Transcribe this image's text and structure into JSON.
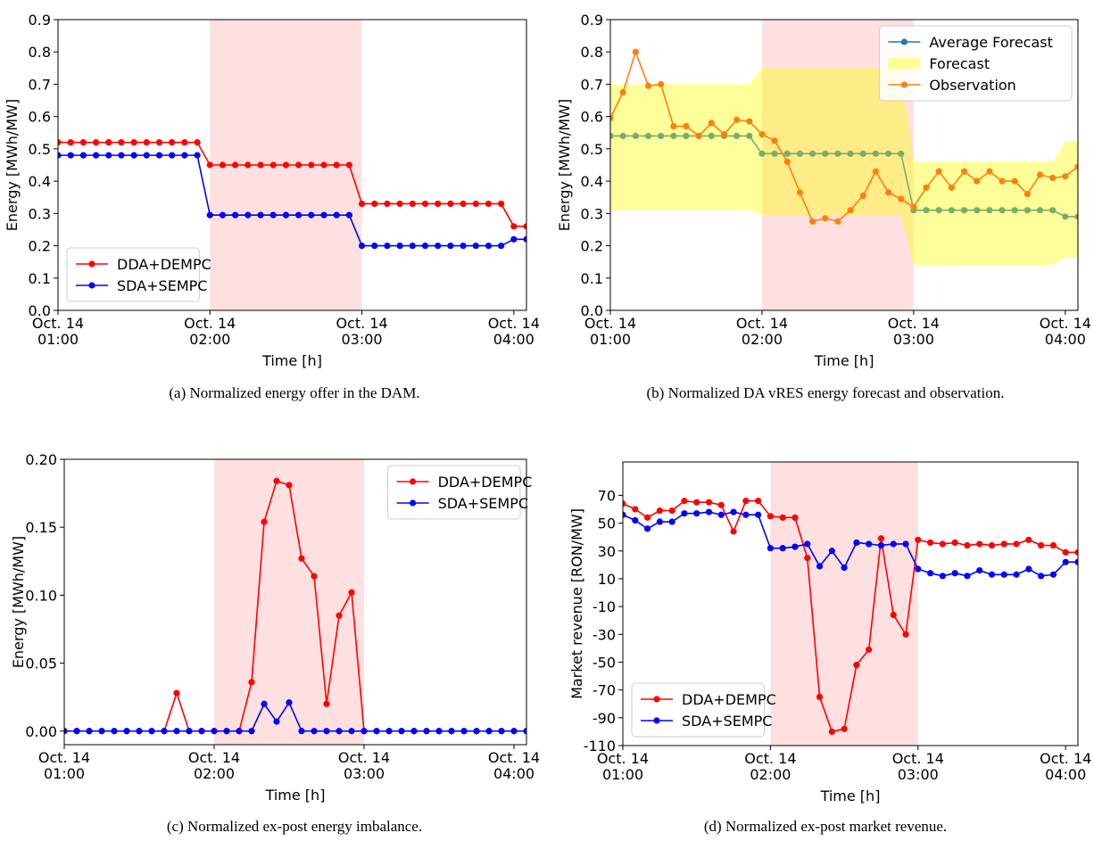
{
  "chart_data": [
    {
      "type": "line",
      "caption": "(a) Normalized energy offer in the DAM.",
      "xlabel": "Time [h]",
      "ylabel": "Energy [MWh/MW]",
      "x": [
        "01:00",
        "01:05",
        "01:10",
        "01:15",
        "01:20",
        "01:25",
        "01:30",
        "01:35",
        "01:40",
        "01:45",
        "01:50",
        "01:55",
        "02:00",
        "02:05",
        "02:10",
        "02:15",
        "02:20",
        "02:25",
        "02:30",
        "02:35",
        "02:40",
        "02:45",
        "02:50",
        "02:55",
        "03:00",
        "03:05",
        "03:10",
        "03:15",
        "03:20",
        "03:25",
        "03:30",
        "03:35",
        "03:40",
        "03:45",
        "03:50",
        "03:55",
        "04:00",
        "04:05"
      ],
      "xlim": [
        "01:00",
        "04:05"
      ],
      "xticks": [
        {
          "value": "01:00",
          "label": [
            "Oct. 14",
            "01:00"
          ]
        },
        {
          "value": "02:00",
          "label": [
            "Oct. 14",
            "02:00"
          ]
        },
        {
          "value": "03:00",
          "label": [
            "Oct. 14",
            "03:00"
          ]
        },
        {
          "value": "04:00",
          "label": [
            "Oct. 14",
            "04:00"
          ]
        }
      ],
      "ylim": [
        0,
        0.9
      ],
      "yticks": [
        {
          "value": 0,
          "label": "0.0"
        },
        0.1,
        0.2,
        0.3,
        0.4,
        0.5,
        0.6,
        0.7,
        0.8,
        0.9
      ],
      "highlight": [
        "02:00",
        "03:00"
      ],
      "highlight_color": "#ff0000",
      "legend": "lower left",
      "series": [
        {
          "name": "DDA+DEMPC",
          "color": "#ff0000",
          "values": [
            0.52,
            0.52,
            0.52,
            0.52,
            0.52,
            0.52,
            0.52,
            0.52,
            0.52,
            0.52,
            0.52,
            0.52,
            0.45,
            0.45,
            0.45,
            0.45,
            0.45,
            0.45,
            0.45,
            0.45,
            0.45,
            0.45,
            0.45,
            0.45,
            0.33,
            0.33,
            0.33,
            0.33,
            0.33,
            0.33,
            0.33,
            0.33,
            0.33,
            0.33,
            0.33,
            0.33,
            0.26,
            0.26
          ]
        },
        {
          "name": "SDA+SEMPC",
          "color": "#0000ff",
          "values": [
            0.48,
            0.48,
            0.48,
            0.48,
            0.48,
            0.48,
            0.48,
            0.48,
            0.48,
            0.48,
            0.48,
            0.48,
            0.295,
            0.295,
            0.295,
            0.295,
            0.295,
            0.295,
            0.295,
            0.295,
            0.295,
            0.295,
            0.295,
            0.295,
            0.2,
            0.2,
            0.2,
            0.2,
            0.2,
            0.2,
            0.2,
            0.2,
            0.2,
            0.2,
            0.2,
            0.2,
            0.22,
            0.22
          ]
        }
      ]
    },
    {
      "type": "line",
      "caption": "(b) Normalized DA vRES energy forecast and observation.",
      "xlabel": "Time [h]",
      "ylabel": "Energy [MWh/MW]",
      "x": [
        "01:00",
        "01:05",
        "01:10",
        "01:15",
        "01:20",
        "01:25",
        "01:30",
        "01:35",
        "01:40",
        "01:45",
        "01:50",
        "01:55",
        "02:00",
        "02:05",
        "02:10",
        "02:15",
        "02:20",
        "02:25",
        "02:30",
        "02:35",
        "02:40",
        "02:45",
        "02:50",
        "02:55",
        "03:00",
        "03:05",
        "03:10",
        "03:15",
        "03:20",
        "03:25",
        "03:30",
        "03:35",
        "03:40",
        "03:45",
        "03:50",
        "03:55",
        "04:00",
        "04:05"
      ],
      "xlim": [
        "01:00",
        "04:05"
      ],
      "xticks": [
        {
          "value": "01:00",
          "label": [
            "Oct. 14",
            "01:00"
          ]
        },
        {
          "value": "02:00",
          "label": [
            "Oct. 14",
            "02:00"
          ]
        },
        {
          "value": "03:00",
          "label": [
            "Oct. 14",
            "03:00"
          ]
        },
        {
          "value": "04:00",
          "label": [
            "Oct. 14",
            "04:00"
          ]
        }
      ],
      "ylim": [
        0,
        0.9
      ],
      "yticks": [
        {
          "value": 0,
          "label": "0.0"
        },
        0.1,
        0.2,
        0.3,
        0.4,
        0.5,
        0.6,
        0.7,
        0.8,
        0.9
      ],
      "highlight": [
        "02:00",
        "03:00"
      ],
      "highlight_color": "#ff0000",
      "legend": "upper right",
      "series": [
        {
          "name": "Average Forecast",
          "color": "#1f77b4",
          "values": [
            0.54,
            0.54,
            0.54,
            0.54,
            0.54,
            0.54,
            0.54,
            0.54,
            0.54,
            0.54,
            0.54,
            0.54,
            0.485,
            0.485,
            0.485,
            0.485,
            0.485,
            0.485,
            0.485,
            0.485,
            0.485,
            0.485,
            0.485,
            0.485,
            0.31,
            0.31,
            0.31,
            0.31,
            0.31,
            0.31,
            0.31,
            0.31,
            0.31,
            0.31,
            0.31,
            0.31,
            0.29,
            0.29
          ]
        },
        {
          "name": "Forecast",
          "type": "band",
          "color": "#ffff00",
          "lower": [
            0.31,
            0.31,
            0.31,
            0.31,
            0.31,
            0.31,
            0.31,
            0.31,
            0.31,
            0.31,
            0.31,
            0.31,
            0.295,
            0.295,
            0.295,
            0.295,
            0.295,
            0.295,
            0.295,
            0.295,
            0.295,
            0.295,
            0.295,
            0.295,
            0.14,
            0.14,
            0.14,
            0.14,
            0.14,
            0.14,
            0.14,
            0.14,
            0.14,
            0.14,
            0.14,
            0.14,
            0.165,
            0.165
          ],
          "upper": [
            0.7,
            0.7,
            0.7,
            0.7,
            0.7,
            0.7,
            0.7,
            0.7,
            0.7,
            0.7,
            0.7,
            0.7,
            0.75,
            0.75,
            0.75,
            0.75,
            0.75,
            0.75,
            0.75,
            0.75,
            0.75,
            0.75,
            0.75,
            0.75,
            0.46,
            0.46,
            0.46,
            0.46,
            0.46,
            0.46,
            0.46,
            0.46,
            0.46,
            0.46,
            0.46,
            0.46,
            0.525,
            0.525
          ]
        },
        {
          "name": "Observation",
          "color": "#ff7f0e",
          "values": [
            0.595,
            0.675,
            0.8,
            0.695,
            0.7,
            0.57,
            0.57,
            0.54,
            0.58,
            0.545,
            0.59,
            0.585,
            0.545,
            0.525,
            0.46,
            0.365,
            0.275,
            0.285,
            0.275,
            0.31,
            0.355,
            0.43,
            0.365,
            0.345,
            0.32,
            0.38,
            0.43,
            0.38,
            0.43,
            0.4,
            0.43,
            0.4,
            0.4,
            0.36,
            0.42,
            0.41,
            0.415,
            0.445
          ]
        }
      ]
    },
    {
      "type": "line",
      "caption": "(c) Normalized ex-post energy imbalance.",
      "xlabel": "Time [h]",
      "ylabel": "Energy [MWh/MW]",
      "x": [
        "01:00",
        "01:05",
        "01:10",
        "01:15",
        "01:20",
        "01:25",
        "01:30",
        "01:35",
        "01:40",
        "01:45",
        "01:50",
        "01:55",
        "02:00",
        "02:05",
        "02:10",
        "02:15",
        "02:20",
        "02:25",
        "02:30",
        "02:35",
        "02:40",
        "02:45",
        "02:50",
        "02:55",
        "03:00",
        "03:05",
        "03:10",
        "03:15",
        "03:20",
        "03:25",
        "03:30",
        "03:35",
        "03:40",
        "03:45",
        "03:50",
        "03:55",
        "04:00",
        "04:05"
      ],
      "xlim": [
        "01:00",
        "04:05"
      ],
      "xticks": [
        {
          "value": "01:00",
          "label": [
            "Oct. 14",
            "01:00"
          ]
        },
        {
          "value": "02:00",
          "label": [
            "Oct. 14",
            "02:00"
          ]
        },
        {
          "value": "03:00",
          "label": [
            "Oct. 14",
            "03:00"
          ]
        },
        {
          "value": "04:00",
          "label": [
            "Oct. 14",
            "04:00"
          ]
        }
      ],
      "ylim": [
        -0.01,
        0.2
      ],
      "yticks": [
        {
          "value": 0,
          "label": "0.00"
        },
        0.05,
        {
          "value": 0.1,
          "label": "0.10"
        },
        0.15,
        {
          "value": 0.2,
          "label": "0.20"
        }
      ],
      "highlight": [
        "02:00",
        "03:00"
      ],
      "highlight_color": "#ff0000",
      "legend": "upper right",
      "series": [
        {
          "name": "DDA+DEMPC",
          "color": "#ff0000",
          "values": [
            0,
            0,
            0,
            0,
            0,
            0,
            0,
            0,
            0,
            0.028,
            0,
            0,
            0,
            0,
            0,
            0.036,
            0.154,
            0.184,
            0.181,
            0.127,
            0.114,
            0.02,
            0.085,
            0.102,
            0,
            0,
            0,
            0,
            0,
            0,
            0,
            0,
            0,
            0,
            0,
            0,
            0,
            0
          ]
        },
        {
          "name": "SDA+SEMPC",
          "color": "#0000ff",
          "values": [
            0,
            0,
            0,
            0,
            0,
            0,
            0,
            0,
            0,
            0,
            0,
            0,
            0,
            0,
            0,
            0,
            0.02,
            0.007,
            0.021,
            0,
            0,
            0,
            0,
            0,
            0,
            0,
            0,
            0,
            0,
            0,
            0,
            0,
            0,
            0,
            0,
            0,
            0,
            0
          ]
        }
      ]
    },
    {
      "type": "line",
      "caption": "(d) Normalized ex-post market revenue.",
      "xlabel": "Time [h]",
      "ylabel": "Market revenue [RON/MW]",
      "x": [
        "01:00",
        "01:05",
        "01:10",
        "01:15",
        "01:20",
        "01:25",
        "01:30",
        "01:35",
        "01:40",
        "01:45",
        "01:50",
        "01:55",
        "02:00",
        "02:05",
        "02:10",
        "02:15",
        "02:20",
        "02:25",
        "02:30",
        "02:35",
        "02:40",
        "02:45",
        "02:50",
        "02:55",
        "03:00",
        "03:05",
        "03:10",
        "03:15",
        "03:20",
        "03:25",
        "03:30",
        "03:35",
        "03:40",
        "03:45",
        "03:50",
        "03:55",
        "04:00",
        "04:05"
      ],
      "xlim": [
        "01:00",
        "04:05"
      ],
      "xticks": [
        {
          "value": "01:00",
          "label": [
            "Oct. 14",
            "01:00"
          ]
        },
        {
          "value": "02:00",
          "label": [
            "Oct. 14",
            "02:00"
          ]
        },
        {
          "value": "03:00",
          "label": [
            "Oct. 14",
            "03:00"
          ]
        },
        {
          "value": "04:00",
          "label": [
            "Oct. 14",
            "04:00"
          ]
        }
      ],
      "ylim": [
        -110,
        94
      ],
      "yticks": [
        70,
        50,
        30,
        10,
        -10,
        -30,
        -50,
        -70,
        -90,
        -110
      ],
      "highlight": [
        "02:00",
        "03:00"
      ],
      "highlight_color": "#ff0000",
      "legend": "lower left",
      "series": [
        {
          "name": "DDA+DEMPC",
          "color": "#ff0000",
          "values": [
            64,
            60,
            54,
            59,
            59,
            66,
            65,
            65,
            63,
            44,
            66,
            66,
            55,
            54,
            54,
            25,
            -75,
            -100,
            -98,
            -52,
            -41,
            39,
            -16,
            -30,
            38,
            36,
            35,
            36,
            34,
            35,
            34,
            35,
            35,
            38,
            34,
            34,
            29,
            29
          ]
        },
        {
          "name": "SDA+SEMPC",
          "color": "#0000ff",
          "values": [
            56,
            52,
            46,
            51,
            51,
            57,
            57,
            58,
            56,
            58,
            56,
            56,
            32,
            32,
            33,
            35,
            19,
            30,
            18,
            36,
            35,
            34,
            35,
            35,
            17,
            14,
            12,
            14,
            12,
            16,
            13,
            13,
            13,
            17,
            12,
            13,
            22,
            22
          ]
        }
      ]
    }
  ]
}
